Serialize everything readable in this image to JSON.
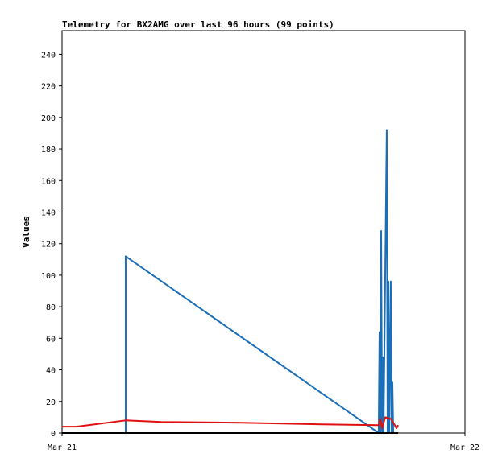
{
  "chart_data": {
    "type": "line",
    "title": "Telemetry for BX2AMG over last 96 hours (99 points)",
    "y_label": "Values",
    "xlim": [
      0,
      24
    ],
    "xticks": [
      {
        "value": 0,
        "label": "Mar 21"
      },
      {
        "value": 24,
        "label": "Mar 22"
      }
    ],
    "ylim": [
      0,
      255
    ],
    "yticks": [
      0,
      20,
      40,
      60,
      80,
      100,
      120,
      140,
      160,
      180,
      200,
      220,
      240
    ],
    "series": [
      {
        "color": "#1a6fb8",
        "x": [
          3.79,
          3.79,
          18.86,
          18.91,
          18.96,
          19.01,
          19.06,
          19.1,
          19.15,
          19.34,
          19.39,
          19.44,
          19.49,
          19.58,
          19.63,
          19.68,
          19.73
        ],
        "values": [
          0,
          112,
          0,
          64,
          0,
          128,
          0,
          48,
          0,
          192,
          0,
          96,
          0,
          96,
          0,
          32,
          0
        ]
      },
      {
        "color": "#e01010",
        "x": [
          0,
          0.86,
          3.79,
          5.9,
          10.7,
          15.5,
          18.86,
          18.96,
          19.06,
          19.25,
          19.58,
          19.82,
          19.92,
          20.02
        ],
        "values": [
          4,
          4,
          8,
          7,
          6.5,
          5.5,
          5,
          9,
          3,
          10,
          9,
          5,
          3,
          5
        ]
      },
      {
        "color": "#000000",
        "x": [
          0,
          20.02
        ],
        "values": [
          0,
          0
        ]
      }
    ]
  }
}
